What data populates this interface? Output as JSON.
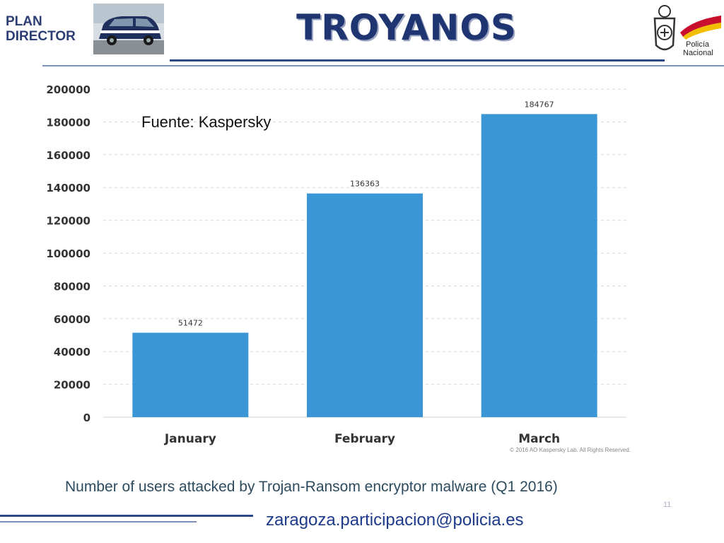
{
  "header": {
    "plan_line1": "PLAN",
    "plan_line2": "DIRECTOR",
    "title": "TROYANOS",
    "logo_line1": "Policía",
    "logo_line2": "Nacional"
  },
  "source_note": "Fuente: Kaspersky",
  "chart_data": {
    "type": "bar",
    "categories": [
      "January",
      "February",
      "March"
    ],
    "values": [
      51472,
      136363,
      184767
    ],
    "data_labels": [
      "51472",
      "136363",
      "184767"
    ],
    "y_ticks": [
      "0",
      "20000",
      "40000",
      "60000",
      "80000",
      "100000",
      "120000",
      "140000",
      "160000",
      "180000",
      "200000"
    ],
    "ylim": [
      0,
      200000
    ],
    "grid": true,
    "bar_color": "#3b96d6",
    "copyright": "© 2016 AO Kaspersky Lab. All Rights Reserved.",
    "caption": "Number of users attacked by Trojan-Ransom encryptor malware (Q1 2016)"
  },
  "footer": {
    "page_number": "11",
    "email": "zaragoza.participacion@policia.es"
  },
  "colors": {
    "navy": "#1e3572",
    "bar": "#3b96d6",
    "flag_red": "#c8102e",
    "flag_yellow": "#f1bf00"
  }
}
